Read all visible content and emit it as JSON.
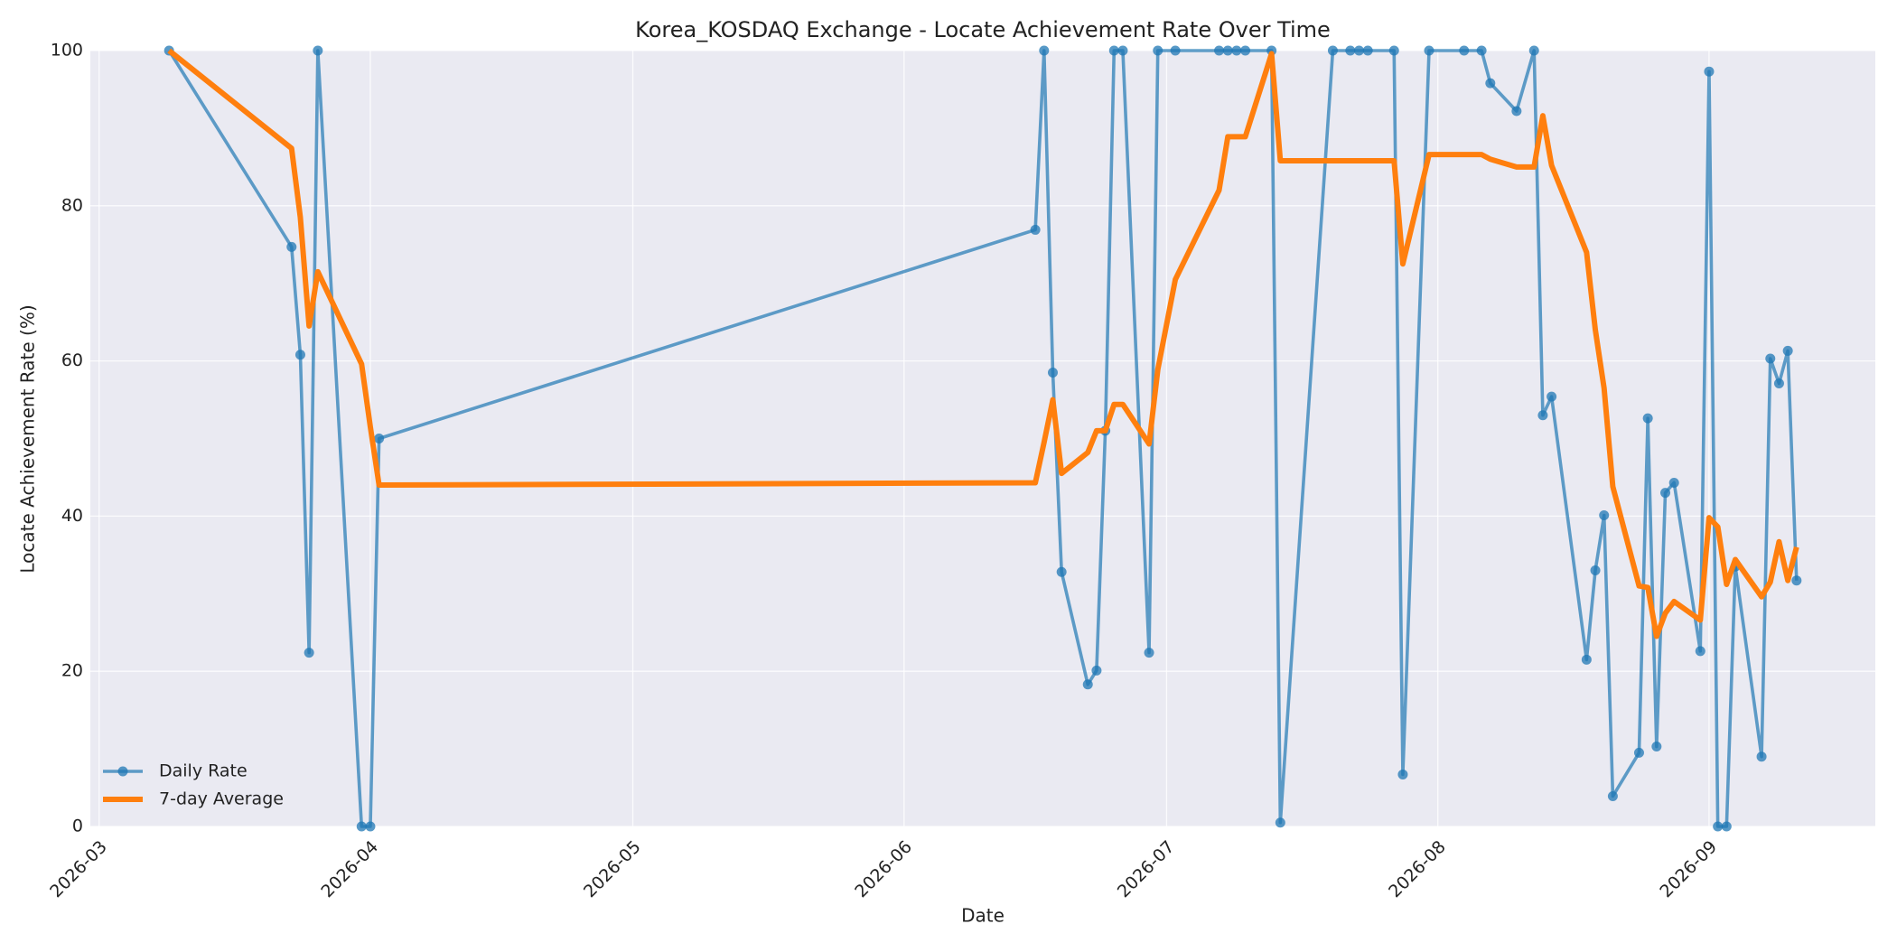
{
  "chart_data": {
    "type": "line",
    "title": "Korea_KOSDAQ Exchange - Locate Achievement Rate Over Time",
    "xlabel": "Date",
    "ylabel": "Locate Achievement Rate (%)",
    "x": [
      "2026-03-09",
      "2026-03-23",
      "2026-03-24",
      "2026-03-25",
      "2026-03-26",
      "2026-03-31",
      "2026-04-01",
      "2026-04-02",
      "2026-06-16",
      "2026-06-17",
      "2026-06-18",
      "2026-06-19",
      "2026-06-22",
      "2026-06-23",
      "2026-06-24",
      "2026-06-25",
      "2026-06-26",
      "2026-06-29",
      "2026-06-30",
      "2026-07-02",
      "2026-07-07",
      "2026-07-08",
      "2026-07-09",
      "2026-07-10",
      "2026-07-13",
      "2026-07-14",
      "2026-07-20",
      "2026-07-22",
      "2026-07-23",
      "2026-07-24",
      "2026-07-27",
      "2026-07-28",
      "2026-07-31",
      "2026-08-04",
      "2026-08-06",
      "2026-08-07",
      "2026-08-10",
      "2026-08-12",
      "2026-08-13",
      "2026-08-14",
      "2026-08-18",
      "2026-08-19",
      "2026-08-20",
      "2026-08-21",
      "2026-08-24",
      "2026-08-25",
      "2026-08-26",
      "2026-08-27",
      "2026-08-28",
      "2026-08-31",
      "2026-09-01",
      "2026-09-02",
      "2026-09-03",
      "2026-09-04",
      "2026-09-07",
      "2026-09-08",
      "2026-09-09",
      "2026-09-10",
      "2026-09-11"
    ],
    "series": [
      {
        "name": "Daily Rate",
        "color": "#1f77b4",
        "markers": true,
        "values": [
          100,
          74.7,
          60.8,
          22.4,
          100,
          0,
          0,
          50,
          76.9,
          100,
          58.5,
          32.8,
          18.3,
          20.1,
          51,
          100,
          100,
          22.4,
          100,
          100,
          100,
          100,
          100,
          100,
          100,
          0.5,
          100,
          100,
          100,
          100,
          100,
          6.7,
          100,
          100,
          100,
          95.8,
          92.2,
          100,
          53,
          55.4,
          21.5,
          33,
          40.1,
          3.9,
          9.5,
          52.6,
          10.3,
          43,
          44.3,
          22.6,
          97.3,
          0,
          0,
          33.5,
          9,
          60.3,
          57.1,
          61.3,
          31.7
        ]
      },
      {
        "name": "7-day Average",
        "color": "#ff7f0e",
        "markers": false,
        "values": [
          100,
          87.4,
          78.5,
          64.5,
          71.5,
          59.6,
          51.5,
          44,
          44.3,
          49.5,
          55,
          45.5,
          48.2,
          51,
          51,
          54.4,
          54.4,
          49.3,
          58.9,
          70.5,
          82,
          88.9,
          88.9,
          88.9,
          99.6,
          85.8,
          85.8,
          85.8,
          85.8,
          85.8,
          85.8,
          72.5,
          86.6,
          86.6,
          86.6,
          86,
          85,
          85,
          91.6,
          85.2,
          74,
          64,
          56.5,
          43.8,
          31,
          30.8,
          24.5,
          27.5,
          29,
          26.6,
          39.8,
          38.6,
          31.2,
          34.4,
          29.6,
          31.5,
          36.7,
          31.7,
          36
        ]
      }
    ],
    "xlim": [
      "2026-02-28",
      "2026-09-20"
    ],
    "xticks": [
      {
        "value": "2026-03-01",
        "label": "2026-03"
      },
      {
        "value": "2026-04-01",
        "label": "2026-04"
      },
      {
        "value": "2026-05-01",
        "label": "2026-05"
      },
      {
        "value": "2026-06-01",
        "label": "2026-06"
      },
      {
        "value": "2026-07-01",
        "label": "2026-07"
      },
      {
        "value": "2026-08-01",
        "label": "2026-08"
      },
      {
        "value": "2026-09-01",
        "label": "2026-09"
      }
    ],
    "ylim": [
      0,
      100
    ],
    "yticks": [
      0,
      20,
      40,
      60,
      80,
      100
    ],
    "grid": true,
    "legend": "lower left"
  }
}
